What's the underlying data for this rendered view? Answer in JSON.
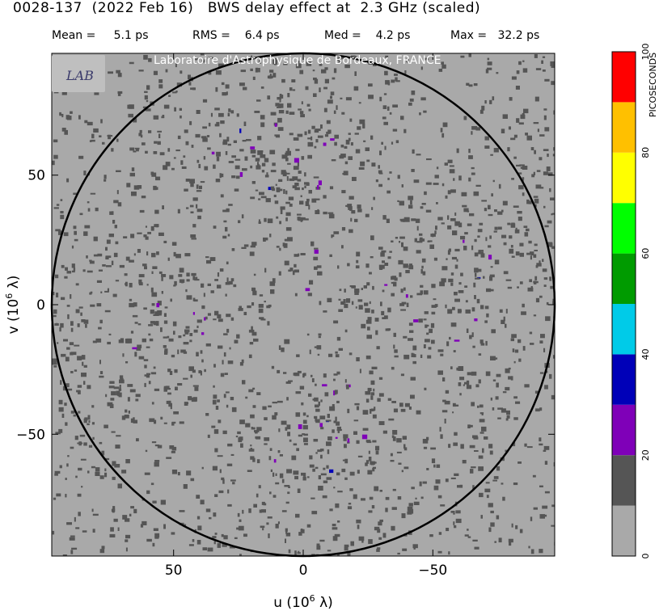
{
  "header": {
    "title": "0028-137  (2022 Feb 16)   BWS delay effect at  2.3 GHz (scaled)",
    "stats": [
      {
        "label": "Mean =",
        "value": "5.1 ps"
      },
      {
        "label": "RMS =",
        "value": "6.4 ps"
      },
      {
        "label": "Med =",
        "value": "4.2 ps"
      },
      {
        "label": "Max =",
        "value": "32.2 ps"
      }
    ]
  },
  "watermark": "Laboratoire d'Astrophysique de Bordeaux, FRANCE",
  "logo": {
    "text": "LAB"
  },
  "chart_data": {
    "type": "heatmap",
    "title": "0028-137  (2022 Feb 16)   BWS delay effect at  2.3 GHz (scaled)",
    "xlabel_main": "u  (10",
    "xlabel_sup": "6",
    "xlabel_end": " λ)",
    "ylabel_main": "v  (10",
    "ylabel_sup": "6",
    "ylabel_end": " λ)",
    "xlim": [
      97,
      -97
    ],
    "ylim": [
      -97,
      97
    ],
    "x_ticks": [
      50,
      0,
      -50
    ],
    "x_tick_labels": [
      "50",
      "0",
      "−50"
    ],
    "y_ticks": [
      50,
      0,
      -50
    ],
    "y_tick_labels": [
      "50",
      "0",
      "−50"
    ],
    "circle_radius": 97,
    "colorbar": {
      "label": "PICOSECONDS",
      "min": 0,
      "max": 100,
      "ticks": [
        0,
        20,
        40,
        60,
        80,
        100
      ],
      "tick_labels": [
        "0",
        "20",
        "40",
        "60",
        "80",
        "100"
      ],
      "bands": [
        {
          "from": 0,
          "to": 10,
          "color": "#a9a9a9"
        },
        {
          "from": 10,
          "to": 20,
          "color": "#555555"
        },
        {
          "from": 20,
          "to": 30,
          "color": "#7f00b8"
        },
        {
          "from": 30,
          "to": 40,
          "color": "#0000b8"
        },
        {
          "from": 40,
          "to": 50,
          "color": "#00cbe8"
        },
        {
          "from": 50,
          "to": 60,
          "color": "#009b00"
        },
        {
          "from": 60,
          "to": 70,
          "color": "#00ff00"
        },
        {
          "from": 70,
          "to": 80,
          "color": "#ffff00"
        },
        {
          "from": 80,
          "to": 90,
          "color": "#ffc000"
        },
        {
          "from": 90,
          "to": 100,
          "color": "#ff0000"
        }
      ]
    },
    "background_color": "#a9a9a9",
    "grid": false,
    "legend": "colorbar-right"
  }
}
